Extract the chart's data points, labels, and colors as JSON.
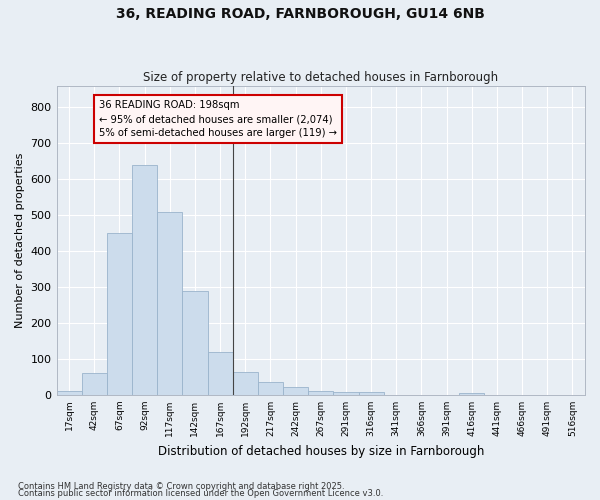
{
  "title": "36, READING ROAD, FARNBOROUGH, GU14 6NB",
  "subtitle": "Size of property relative to detached houses in Farnborough",
  "xlabel": "Distribution of detached houses by size in Farnborough",
  "ylabel": "Number of detached properties",
  "bar_color": "#ccdcec",
  "bar_edge_color": "#9ab4cc",
  "background_color": "#e8eef4",
  "grid_color": "#ffffff",
  "categories": [
    "17sqm",
    "42sqm",
    "67sqm",
    "92sqm",
    "117sqm",
    "142sqm",
    "167sqm",
    "192sqm",
    "217sqm",
    "242sqm",
    "267sqm",
    "291sqm",
    "316sqm",
    "341sqm",
    "366sqm",
    "391sqm",
    "416sqm",
    "441sqm",
    "466sqm",
    "491sqm",
    "516sqm"
  ],
  "values": [
    12,
    60,
    450,
    640,
    510,
    290,
    120,
    65,
    37,
    22,
    10,
    8,
    8,
    0,
    0,
    0,
    5,
    0,
    0,
    0,
    0
  ],
  "ylim": [
    0,
    860
  ],
  "yticks": [
    0,
    100,
    200,
    300,
    400,
    500,
    600,
    700,
    800
  ],
  "annotation_text": "36 READING ROAD: 198sqm\n← 95% of detached houses are smaller (2,074)\n5% of semi-detached houses are larger (119) →",
  "vline_index": 7,
  "vline_color": "#444444",
  "annotation_border_color": "#cc0000",
  "annotation_face_color": "#fff5f5",
  "footnote1": "Contains HM Land Registry data © Crown copyright and database right 2025.",
  "footnote2": "Contains public sector information licensed under the Open Government Licence v3.0."
}
